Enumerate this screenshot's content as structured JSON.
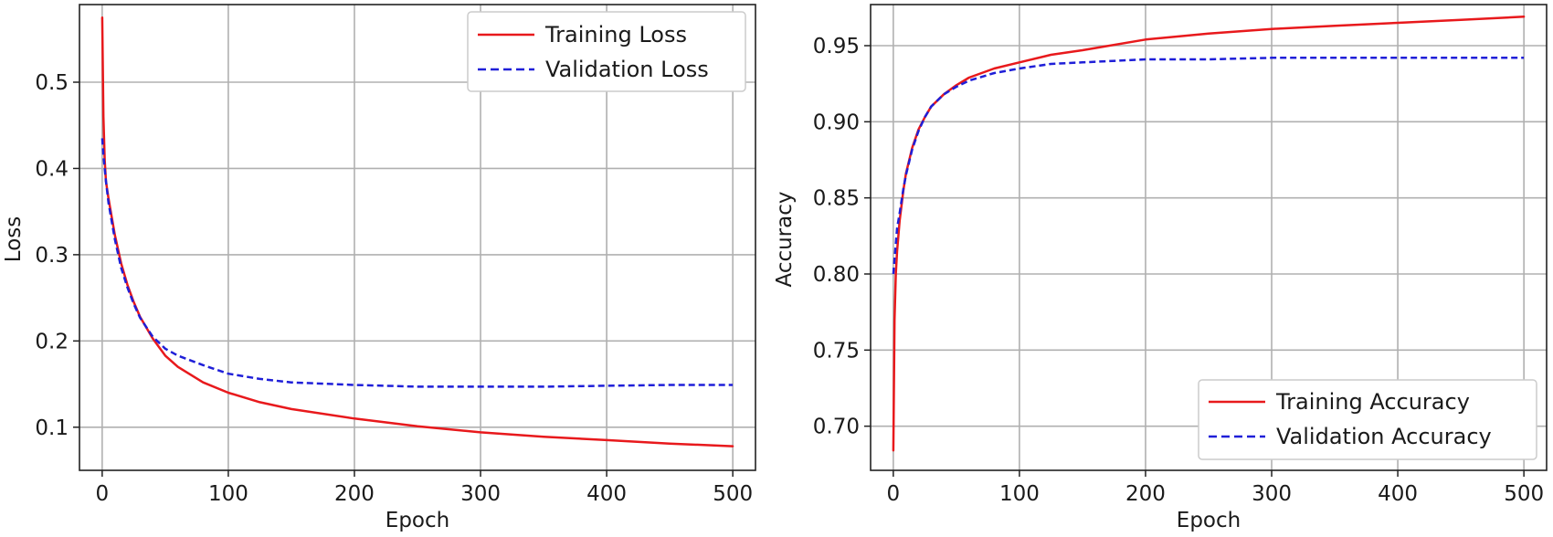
{
  "chart_data": [
    {
      "type": "line",
      "title": "",
      "xlabel": "Epoch",
      "ylabel": "Loss",
      "xlim": [
        -18,
        518
      ],
      "ylim": [
        0.05,
        0.59
      ],
      "xticks": [
        0,
        100,
        200,
        300,
        400,
        500
      ],
      "yticks": [
        0.1,
        0.2,
        0.3,
        0.4,
        0.5
      ],
      "xtick_labels": [
        "0",
        "100",
        "200",
        "300",
        "400",
        "500"
      ],
      "ytick_labels": [
        "0.1",
        "0.2",
        "0.3",
        "0.4",
        "0.5"
      ],
      "grid": true,
      "legend_position": "top-right",
      "series": [
        {
          "name": "Training Loss",
          "color": "#e8191c",
          "style": "solid",
          "x": [
            0,
            1,
            2,
            3,
            5,
            8,
            10,
            15,
            20,
            25,
            30,
            40,
            50,
            60,
            80,
            100,
            125,
            150,
            200,
            250,
            300,
            350,
            400,
            450,
            500
          ],
          "y": [
            0.575,
            0.46,
            0.41,
            0.385,
            0.365,
            0.34,
            0.323,
            0.29,
            0.265,
            0.245,
            0.228,
            0.203,
            0.183,
            0.17,
            0.152,
            0.14,
            0.129,
            0.121,
            0.11,
            0.101,
            0.094,
            0.089,
            0.085,
            0.081,
            0.078
          ]
        },
        {
          "name": "Validation Loss",
          "color": "#1f1fd8",
          "style": "dashed",
          "x": [
            0,
            1,
            2,
            3,
            5,
            8,
            10,
            15,
            20,
            25,
            30,
            40,
            50,
            60,
            80,
            100,
            125,
            150,
            200,
            250,
            300,
            350,
            400,
            450,
            500
          ],
          "y": [
            0.435,
            0.415,
            0.4,
            0.385,
            0.36,
            0.335,
            0.318,
            0.285,
            0.262,
            0.243,
            0.227,
            0.205,
            0.191,
            0.183,
            0.172,
            0.162,
            0.156,
            0.152,
            0.149,
            0.147,
            0.147,
            0.147,
            0.148,
            0.149,
            0.149
          ]
        }
      ]
    },
    {
      "type": "line",
      "title": "",
      "xlabel": "Epoch",
      "ylabel": "Accuracy",
      "xlim": [
        -18,
        518
      ],
      "ylim": [
        0.671,
        0.977
      ],
      "xticks": [
        0,
        100,
        200,
        300,
        400,
        500
      ],
      "yticks": [
        0.7,
        0.75,
        0.8,
        0.85,
        0.9,
        0.95
      ],
      "xtick_labels": [
        "0",
        "100",
        "200",
        "300",
        "400",
        "500"
      ],
      "ytick_labels": [
        "0.70",
        "0.75",
        "0.80",
        "0.85",
        "0.90",
        "0.95"
      ],
      "grid": true,
      "legend_position": "bottom-right",
      "series": [
        {
          "name": "Training Accuracy",
          "color": "#e8191c",
          "style": "solid",
          "x": [
            0,
            1,
            2,
            3,
            5,
            8,
            10,
            15,
            20,
            25,
            30,
            40,
            50,
            60,
            80,
            100,
            125,
            150,
            200,
            250,
            300,
            350,
            400,
            450,
            500
          ],
          "y": [
            0.684,
            0.77,
            0.8,
            0.815,
            0.835,
            0.855,
            0.866,
            0.883,
            0.895,
            0.903,
            0.91,
            0.918,
            0.924,
            0.929,
            0.935,
            0.939,
            0.944,
            0.947,
            0.954,
            0.958,
            0.961,
            0.963,
            0.965,
            0.967,
            0.969
          ]
        },
        {
          "name": "Validation Accuracy",
          "color": "#1f1fd8",
          "style": "dashed",
          "x": [
            0,
            1,
            2,
            3,
            5,
            8,
            10,
            15,
            20,
            25,
            30,
            40,
            50,
            60,
            80,
            100,
            125,
            150,
            200,
            250,
            300,
            350,
            400,
            450,
            500
          ],
          "y": [
            0.8,
            0.81,
            0.82,
            0.83,
            0.84,
            0.856,
            0.865,
            0.882,
            0.894,
            0.903,
            0.91,
            0.918,
            0.923,
            0.927,
            0.932,
            0.935,
            0.938,
            0.939,
            0.941,
            0.941,
            0.942,
            0.942,
            0.942,
            0.942,
            0.942
          ]
        }
      ]
    }
  ]
}
